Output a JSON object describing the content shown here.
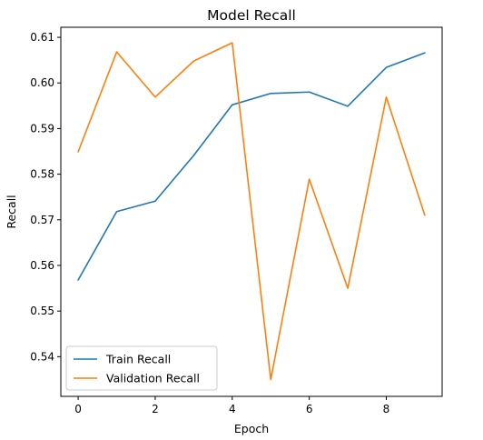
{
  "chart_data": {
    "type": "line",
    "title": "Model Recall",
    "xlabel": "Epoch",
    "ylabel": "Recall",
    "x": [
      0,
      1,
      2,
      3,
      4,
      5,
      6,
      7,
      8,
      9
    ],
    "xlim": [
      -0.45,
      9.45
    ],
    "ylim": [
      0.5313,
      0.6122
    ],
    "xticks": [
      0,
      2,
      4,
      6,
      8
    ],
    "xtick_labels": [
      "0",
      "2",
      "4",
      "6",
      "8"
    ],
    "yticks": [
      0.54,
      0.55,
      0.56,
      0.57,
      0.58,
      0.59,
      0.6,
      0.61
    ],
    "ytick_labels": [
      "0.54",
      "0.55",
      "0.56",
      "0.57",
      "0.58",
      "0.59",
      "0.60",
      "0.61"
    ],
    "grid": false,
    "legend_position": "lower-left",
    "series": [
      {
        "name": "Train Recall",
        "color": "#1f77b4",
        "values": [
          0.5568,
          0.5718,
          0.5741,
          0.5841,
          0.5952,
          0.5977,
          0.598,
          0.5949,
          0.6034,
          0.6066
        ]
      },
      {
        "name": "Validation Recall",
        "color": "#ff7f0e",
        "values": [
          0.5849,
          0.6068,
          0.5969,
          0.6048,
          0.6088,
          0.535,
          0.5789,
          0.555,
          0.5969,
          0.571
        ]
      }
    ]
  }
}
